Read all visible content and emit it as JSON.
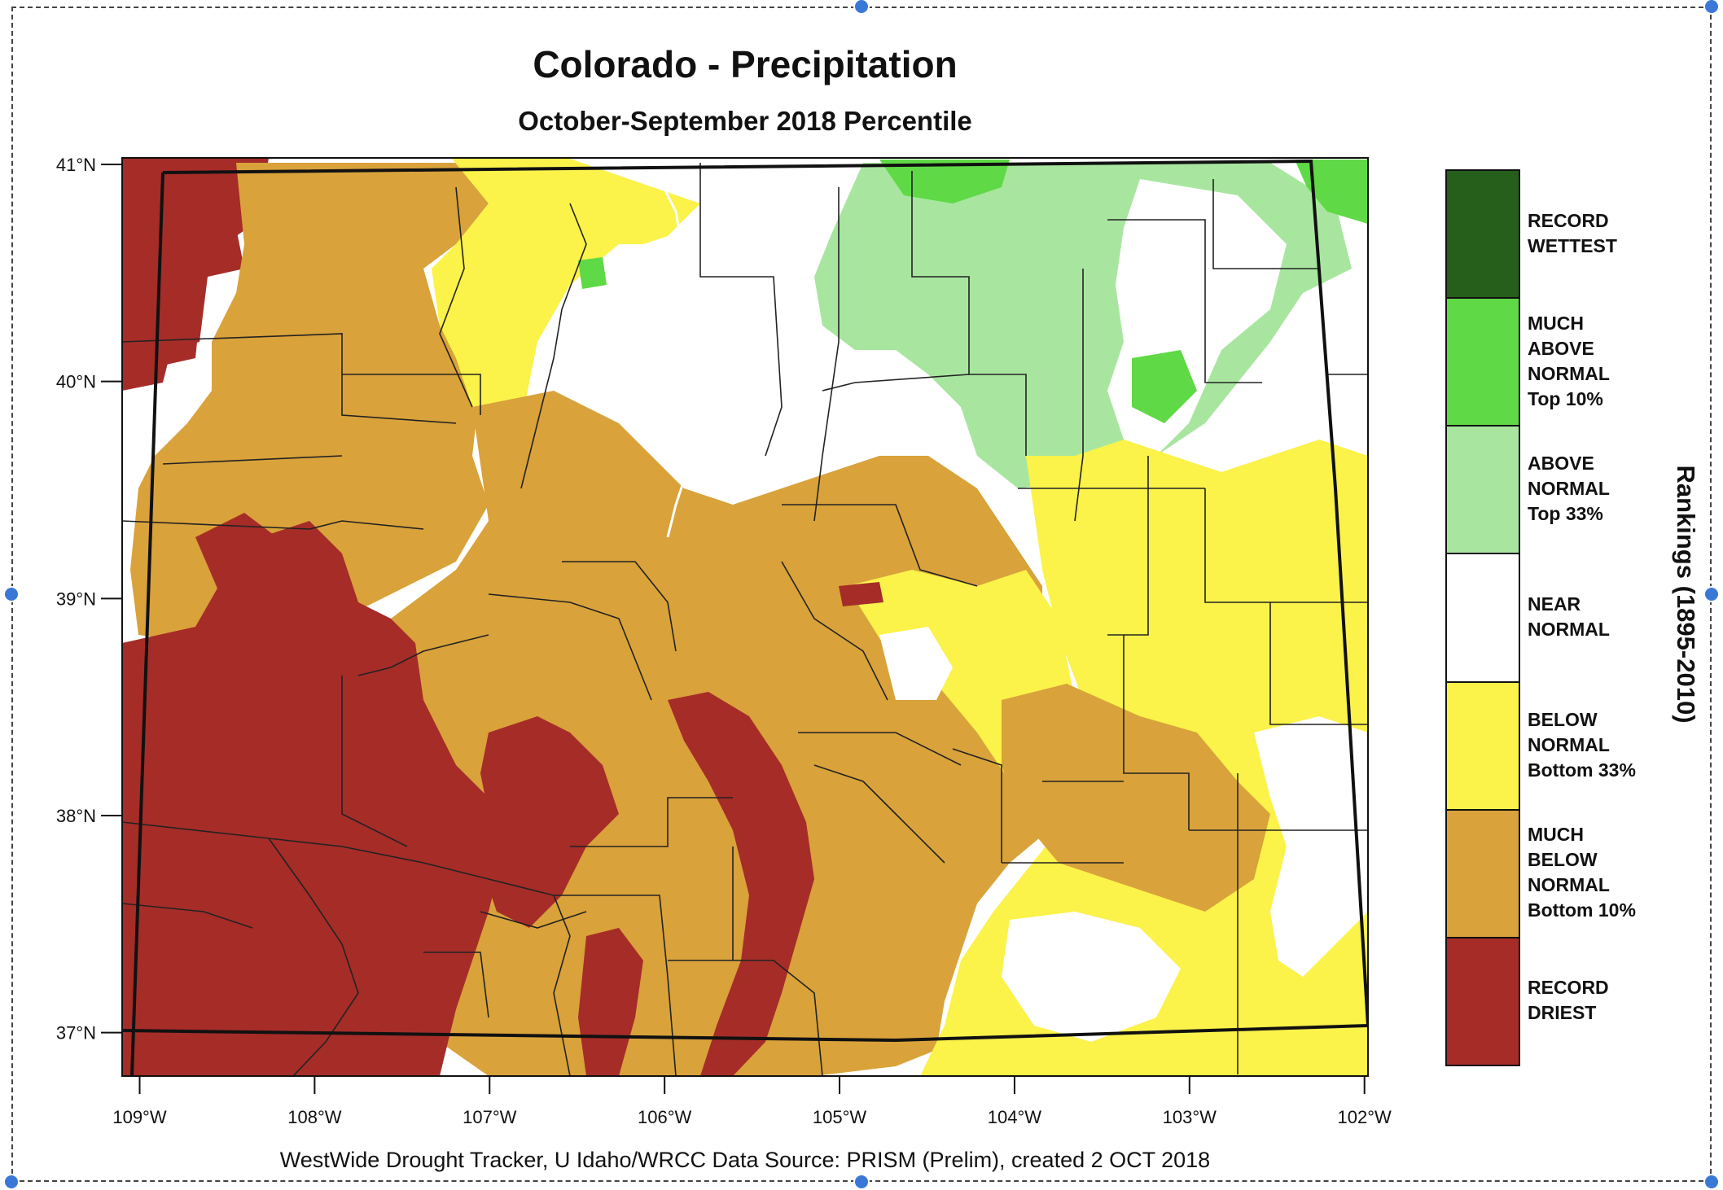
{
  "map": {
    "title": "Colorado - Precipitation",
    "subtitle": "October-September 2018 Percentile",
    "region": "Colorado",
    "lat_labels": [
      "41°N",
      "40°N",
      "39°N",
      "38°N",
      "37°N"
    ],
    "lat_values": [
      41,
      40,
      39,
      38,
      37
    ],
    "lon_labels": [
      "109°W",
      "108°W",
      "107°W",
      "106°W",
      "105°W",
      "104°W",
      "103°W",
      "102°W"
    ],
    "lon_values": [
      -109,
      -108,
      -107,
      -106,
      -105,
      -104,
      -103,
      -102
    ],
    "extent": {
      "lon_min": -109.1,
      "lon_max": -101.98,
      "lat_min": 36.8,
      "lat_max": 41.03
    },
    "credit": "WestWide Drought Tracker, U Idaho/WRCC Data Source: PRISM (Prelim), created  2 OCT 2018"
  },
  "legend": {
    "axis_label": "Rankings (1895-2010)",
    "categories": [
      {
        "key": "record_wettest",
        "label": "RECORD\nWETTEST",
        "color": "#265e1c"
      },
      {
        "key": "much_above",
        "label": "MUCH\nABOVE\nNORMAL\nTop 10%",
        "color": "#5fd945"
      },
      {
        "key": "above",
        "label": "ABOVE\nNORMAL\nTop 33%",
        "color": "#a8e6a0"
      },
      {
        "key": "near",
        "label": "NEAR\nNORMAL",
        "color": "#ffffff"
      },
      {
        "key": "below",
        "label": "BELOW\nNORMAL\nBottom 33%",
        "color": "#fbf24a"
      },
      {
        "key": "much_below",
        "label": "MUCH\nBELOW\nNORMAL\nBottom 10%",
        "color": "#d9a23a"
      },
      {
        "key": "record_driest",
        "label": "RECORD\nDRIEST",
        "color": "#a62c28"
      }
    ]
  }
}
